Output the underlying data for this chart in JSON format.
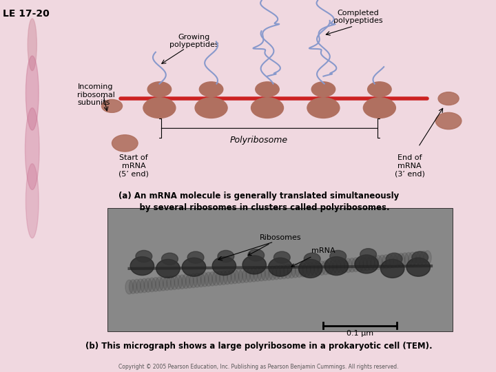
{
  "title": "LE 17-20",
  "bg_color": "#f0d8e0",
  "white_bg": "#ffffff",
  "panel_a": {
    "caption_a": "(a) An mRNA molecule is generally translated simultaneously",
    "caption_b": "    by several ribosomes in clusters called polyribosomes.",
    "labels": {
      "growing": "Growing\npolypeptides",
      "completed": "Completed\npolypeptides",
      "incoming": "Incoming\nribosomal\nsubunits",
      "polyribosome": "Polyribosome",
      "start": "Start of\nmRNA\n(5’ end)",
      "end": "End of\nmRNA\n(3’ end)"
    }
  },
  "panel_b": {
    "caption": "(b) This micrograph shows a large polyribosome in a prokaryotic cell (TEM).",
    "labels": {
      "ribosomes": "Ribosomes",
      "mrna": "mRNA"
    },
    "scale_label": "0.1 μm"
  },
  "copyright": "Copyright © 2005 Pearson Education, Inc. Publishing as Pearson Benjamin Cummings. All rights reserved.",
  "ribosome_color": "#b07060",
  "mrna_color": "#cc2222",
  "polypeptide_color": "#8899cc",
  "text_color": "#000000",
  "font_size_label": 8,
  "font_size_caption": 8.5,
  "font_size_title": 10
}
